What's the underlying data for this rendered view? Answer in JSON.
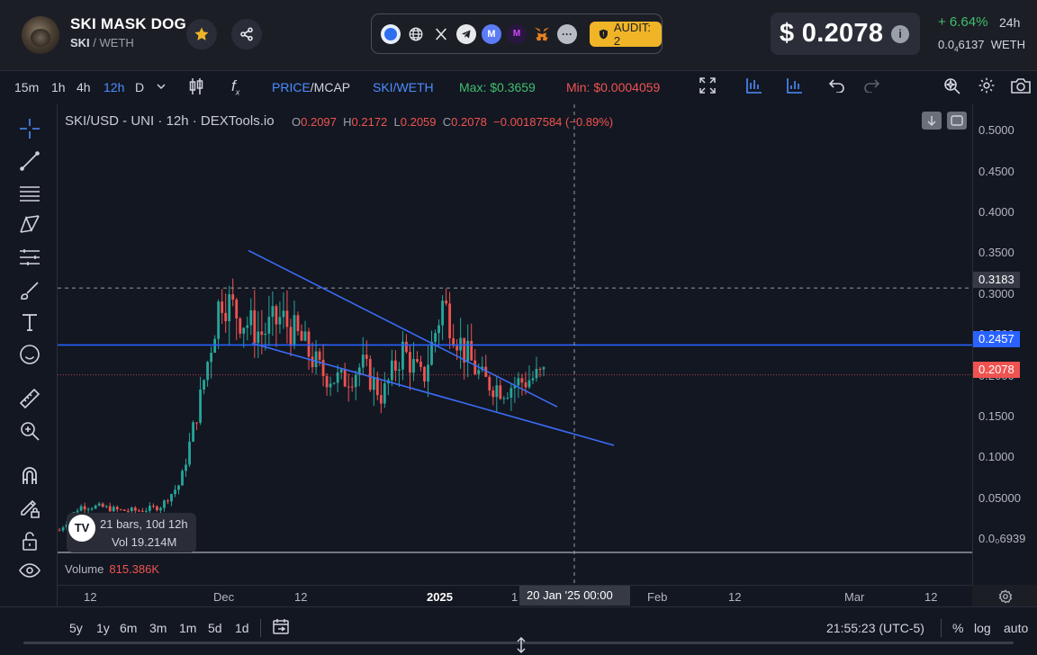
{
  "token": {
    "name": "SKI MASK DOG",
    "symbol": "SKI",
    "quote": "WETH",
    "price": "$ 0.2078",
    "change": "+ 6.64%",
    "change_period": "24h",
    "eth_price_prefix": "0.0",
    "eth_price_sub": "4",
    "eth_price_rest": "6137",
    "eth_unit": "WETH"
  },
  "audit": {
    "label": "AUDIT: 2"
  },
  "links": [
    "coinbase-icon",
    "website-icon",
    "x-icon",
    "telegram-icon",
    "coinmarketcap-icon",
    "moonshot-icon",
    "metamask-icon",
    "more-icon"
  ],
  "toolbar": {
    "intervals": [
      "15m",
      "1h",
      "4h",
      "12h",
      "D"
    ],
    "active_interval": "12h",
    "price_label": "PRICE",
    "mcap_label": "/MCAP",
    "pair_label": "SKI/WETH",
    "max_label": "Max: $0.3659",
    "min_label": "Min: $0.0004059",
    "colors": {
      "max": "#3fbf6d",
      "min": "#ef5350",
      "active": "#4c8dff"
    }
  },
  "legend": {
    "title": "SKI/USD - UNI · 12h · DEXTools.io",
    "o_label": "O",
    "o": "0.2097",
    "h_label": "H",
    "h": "0.2172",
    "l_label": "L",
    "l": "0.2059",
    "c_label": "C",
    "c": "0.2078",
    "change": "−0.00187584 (−0.89%)"
  },
  "yaxis": {
    "ticks": [
      "0.5000",
      "0.4500",
      "0.4000",
      "0.3500",
      "0.3000",
      "0.2500",
      "0.2000",
      "0.1500",
      "0.1000",
      "0.05000"
    ],
    "low_tick": "0.0₀6939",
    "crosshair_price": "0.3183",
    "line_price": "0.2457",
    "last_price": "0.2078"
  },
  "xaxis": {
    "ticks": [
      "12",
      "Dec",
      "12",
      "2025",
      "1",
      "Feb",
      "12",
      "Mar",
      "12"
    ],
    "crosshair_date": "20 Jan '25   00:00"
  },
  "volume": {
    "label": "Volume",
    "value": "815.386K"
  },
  "tooltip": {
    "logo": "TV",
    "line1": "21 bars, 10d 12h",
    "line2": "Vol 19.214M"
  },
  "bottom": {
    "ranges": [
      "5y",
      "1y",
      "6m",
      "3m",
      "1m",
      "5d",
      "1d"
    ],
    "time": "21:55:23 (UTC-5)",
    "pct": "%",
    "log": "log",
    "auto": "auto"
  },
  "chart_data": {
    "type": "candlestick",
    "x": [
      "Nov 8",
      "Nov 12",
      "Nov 16",
      "Nov 20",
      "Nov 24",
      "Nov 28",
      "Dec 2",
      "Dec 5",
      "Dec 7",
      "Dec 9",
      "Dec 11",
      "Dec 14",
      "Dec 17",
      "Dec 20",
      "Dec 23",
      "Dec 26",
      "Dec 29",
      "Jan 1",
      "Jan 4",
      "Jan 7",
      "Jan 10",
      "Jan 13",
      "Jan 16",
      "Jan 19",
      "Jan 20"
    ],
    "close": [
      0.01,
      0.04,
      0.04,
      0.035,
      0.035,
      0.04,
      0.07,
      0.18,
      0.31,
      0.28,
      0.26,
      0.28,
      0.25,
      0.21,
      0.2,
      0.22,
      0.18,
      0.24,
      0.2,
      0.3,
      0.24,
      0.2,
      0.19,
      0.2,
      0.2078
    ],
    "horizontal_line": 0.2457,
    "ylim": [
      0,
      0.52
    ]
  }
}
